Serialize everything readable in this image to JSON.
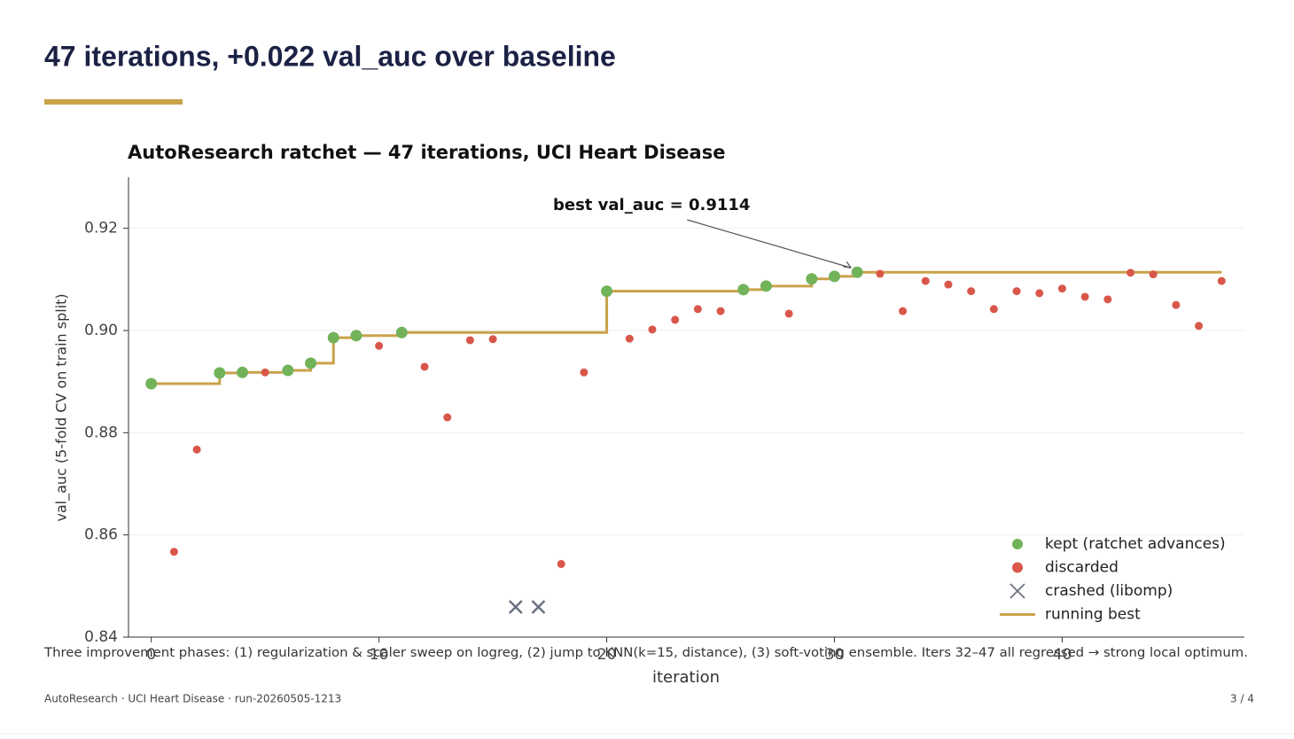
{
  "header": {
    "title": "47 iterations, +0.022 val_auc over baseline"
  },
  "chart_data": {
    "type": "scatter",
    "title": "AutoResearch ratchet — 47 iterations, UCI Heart Disease",
    "xlabel": "iteration",
    "ylabel": "val_auc  (5-fold CV on train split)",
    "xlim": [
      -1,
      48
    ],
    "ylim": [
      0.84,
      0.93
    ],
    "xticks": [
      0,
      10,
      20,
      30,
      40
    ],
    "yticks": [
      0.84,
      0.86,
      0.88,
      {
        "value": 0.9,
        "label": "0.90"
      },
      0.92
    ],
    "grid": true,
    "legend": "lower right",
    "annotation": "best  val_auc = 0.9114",
    "series": [
      {
        "name": "kept (ratchet advances)",
        "color": "#72b35a",
        "marker": "o",
        "x": [
          0,
          3,
          4,
          6,
          7,
          8,
          9,
          11,
          20,
          26,
          27,
          29,
          30,
          31
        ],
        "values": [
          0.8896,
          0.8917,
          0.8918,
          0.8922,
          0.8936,
          0.8986,
          0.899,
          0.8996,
          0.9077,
          0.908,
          0.9087,
          0.9101,
          0.9106,
          0.9114
        ]
      },
      {
        "name": "discarded",
        "color": "#d9574a",
        "marker": "o",
        "x": [
          1,
          2,
          5,
          10,
          12,
          13,
          14,
          15,
          18,
          19,
          21,
          22,
          23,
          24,
          25,
          28,
          32,
          33,
          34,
          35,
          36,
          37,
          38,
          39,
          40,
          41,
          42,
          43,
          44,
          45,
          46,
          47
        ],
        "values": [
          0.8567,
          0.8767,
          0.8918,
          0.897,
          0.8929,
          0.883,
          0.8981,
          0.8983,
          0.8543,
          0.8918,
          0.8984,
          0.9002,
          0.9021,
          0.9042,
          0.9038,
          0.9033,
          0.9111,
          0.9038,
          0.9097,
          0.909,
          0.9077,
          0.9042,
          0.9077,
          0.9073,
          0.9082,
          0.9066,
          0.9061,
          0.9113,
          0.911,
          0.905,
          0.9009,
          0.9097
        ]
      },
      {
        "name": "crashed (libomp)",
        "color": "#6b7280",
        "marker": "x",
        "x": [
          16,
          17
        ],
        "values": [
          0.8459,
          0.8459
        ]
      },
      {
        "name": "running best",
        "color": "#c9a24a",
        "marker": "step",
        "x": [
          0,
          3,
          4,
          6,
          7,
          8,
          9,
          11,
          20,
          26,
          27,
          29,
          30,
          31,
          47
        ],
        "values": [
          0.8896,
          0.8917,
          0.8918,
          0.8922,
          0.8936,
          0.8986,
          0.899,
          0.8996,
          0.9077,
          0.908,
          0.9087,
          0.9101,
          0.9106,
          0.9114,
          0.9114
        ]
      }
    ],
    "caption": "Three improvement phases: (1) regularization & scaler sweep on logreg, (2) jump to KNN(k=15, distance), (3) soft-voting ensemble. Iters 32–47 all regressed → strong local optimum."
  },
  "footer": {
    "left": "AutoResearch · UCI Heart Disease · run-20260505-1213",
    "right": "3 / 4"
  }
}
